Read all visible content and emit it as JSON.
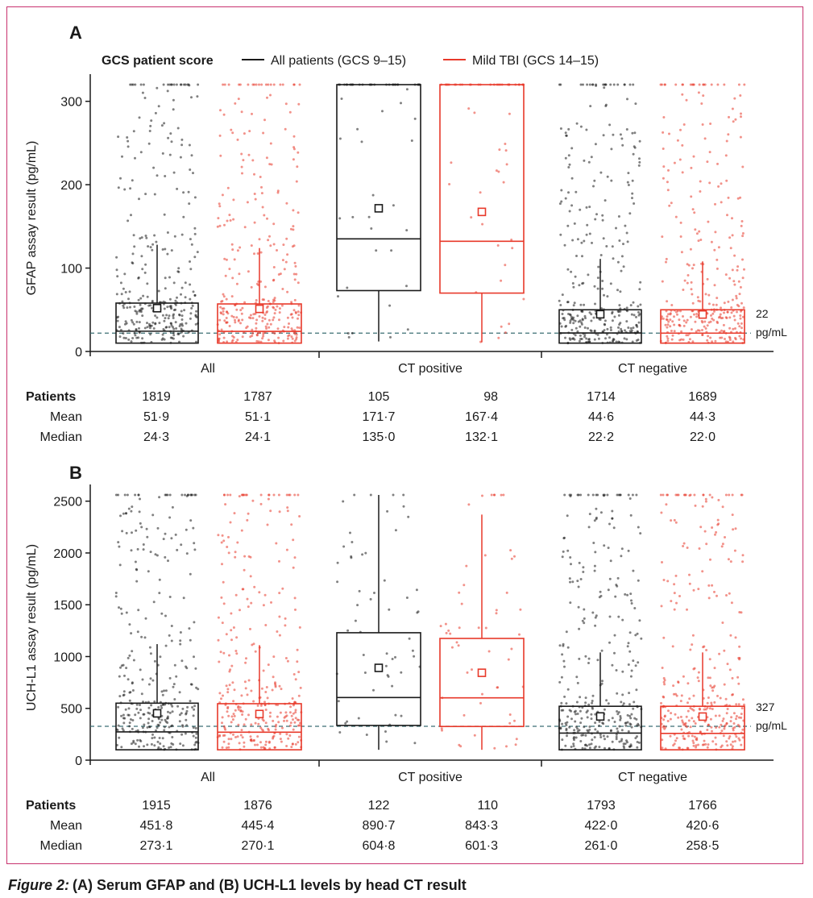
{
  "legend": {
    "title": "GCS patient score",
    "items": [
      {
        "label": "All patients (GCS 9–15)",
        "color": "#1a1a1a"
      },
      {
        "label": "Mild TBI (GCS 14–15)",
        "color": "#e8392a"
      }
    ]
  },
  "colors": {
    "all": "#1a1a1a",
    "mild": "#e8392a",
    "threshold": "#3b6e73",
    "frame": "#c8326e"
  },
  "caption": {
    "prefix": "Figure 2:",
    "text": "(A) Serum GFAP and (B) UCH-L1 levels by head CT result"
  },
  "chart_data": [
    {
      "type": "box",
      "panel": "A",
      "ylabel": "GFAP assay result (pg/mL)",
      "ylim": [
        0,
        320
      ],
      "yticks": [
        0,
        100,
        200,
        300
      ],
      "groups": [
        "All",
        "CT positive",
        "CT negative"
      ],
      "threshold": {
        "value": 22,
        "label_line1": "22",
        "label_line2": "pg/mL"
      },
      "series": [
        {
          "name": "All patients (GCS 9–15)",
          "boxes": [
            {
              "group": "All",
              "q1": 10,
              "median": 24.3,
              "q3": 58,
              "whisker_low": 10,
              "whisker_high": 128,
              "mean": 51.9
            },
            {
              "group": "CT positive",
              "q1": 73,
              "median": 135.0,
              "q3": 320,
              "whisker_low": 12,
              "whisker_high": 320,
              "mean": 171.7
            },
            {
              "group": "CT negative",
              "q1": 10,
              "median": 22.2,
              "q3": 50,
              "whisker_low": 10,
              "whisker_high": 111,
              "mean": 44.6
            }
          ]
        },
        {
          "name": "Mild TBI (GCS 14–15)",
          "boxes": [
            {
              "group": "All",
              "q1": 10,
              "median": 24.1,
              "q3": 57,
              "whisker_low": 10,
              "whisker_high": 124,
              "mean": 51.1
            },
            {
              "group": "CT positive",
              "q1": 70,
              "median": 132.1,
              "q3": 320,
              "whisker_low": 11,
              "whisker_high": 320,
              "mean": 167.4
            },
            {
              "group": "CT negative",
              "q1": 10,
              "median": 22.0,
              "q3": 50,
              "whisker_low": 10,
              "whisker_high": 108,
              "mean": 44.3
            }
          ]
        }
      ],
      "table": {
        "row_labels": [
          "Patients",
          "Mean",
          "Median"
        ],
        "columns": [
          [
            "1819",
            "51·9",
            "24·3"
          ],
          [
            "1787",
            "51·1",
            "24·1"
          ],
          [
            "105",
            "171·7",
            "135·0"
          ],
          [
            "98",
            "167·4",
            "132·1"
          ],
          [
            "1714",
            "44·6",
            "22·2"
          ],
          [
            "1689",
            "44·3",
            "22·0"
          ]
        ]
      }
    },
    {
      "type": "box",
      "panel": "B",
      "ylabel": "UCH-L1 assay result (pg/mL)",
      "ylim": [
        0,
        2560
      ],
      "yticks": [
        0,
        500,
        1000,
        1500,
        2000,
        2500
      ],
      "groups": [
        "All",
        "CT positive",
        "CT negative"
      ],
      "threshold": {
        "value": 327,
        "label_line1": "327",
        "label_line2": "pg/mL"
      },
      "series": [
        {
          "name": "All patients (GCS 9–15)",
          "boxes": [
            {
              "group": "All",
              "q1": 100,
              "median": 273.1,
              "q3": 550,
              "whisker_low": 100,
              "whisker_high": 1120,
              "mean": 451.8
            },
            {
              "group": "CT positive",
              "q1": 335,
              "median": 604.8,
              "q3": 1230,
              "whisker_low": 100,
              "whisker_high": 2560,
              "mean": 890.7
            },
            {
              "group": "CT negative",
              "q1": 100,
              "median": 261.0,
              "q3": 520,
              "whisker_low": 100,
              "whisker_high": 1040,
              "mean": 422.0
            }
          ]
        },
        {
          "name": "Mild TBI (GCS 14–15)",
          "boxes": [
            {
              "group": "All",
              "q1": 100,
              "median": 270.1,
              "q3": 545,
              "whisker_low": 100,
              "whisker_high": 1110,
              "mean": 445.4
            },
            {
              "group": "CT positive",
              "q1": 325,
              "median": 601.3,
              "q3": 1175,
              "whisker_low": 100,
              "whisker_high": 2370,
              "mean": 843.3
            },
            {
              "group": "CT negative",
              "q1": 100,
              "median": 258.5,
              "q3": 520,
              "whisker_low": 100,
              "whisker_high": 1040,
              "mean": 420.6
            }
          ]
        }
      ],
      "table": {
        "row_labels": [
          "Patients",
          "Mean",
          "Median"
        ],
        "columns": [
          [
            "1915",
            "451·8",
            "273·1"
          ],
          [
            "1876",
            "445·4",
            "270·1"
          ],
          [
            "122",
            "890·7",
            "604·8"
          ],
          [
            "110",
            "843·3",
            "601·3"
          ],
          [
            "1793",
            "422·0",
            "261·0"
          ],
          [
            "1766",
            "420·6",
            "258·5"
          ]
        ]
      }
    }
  ]
}
